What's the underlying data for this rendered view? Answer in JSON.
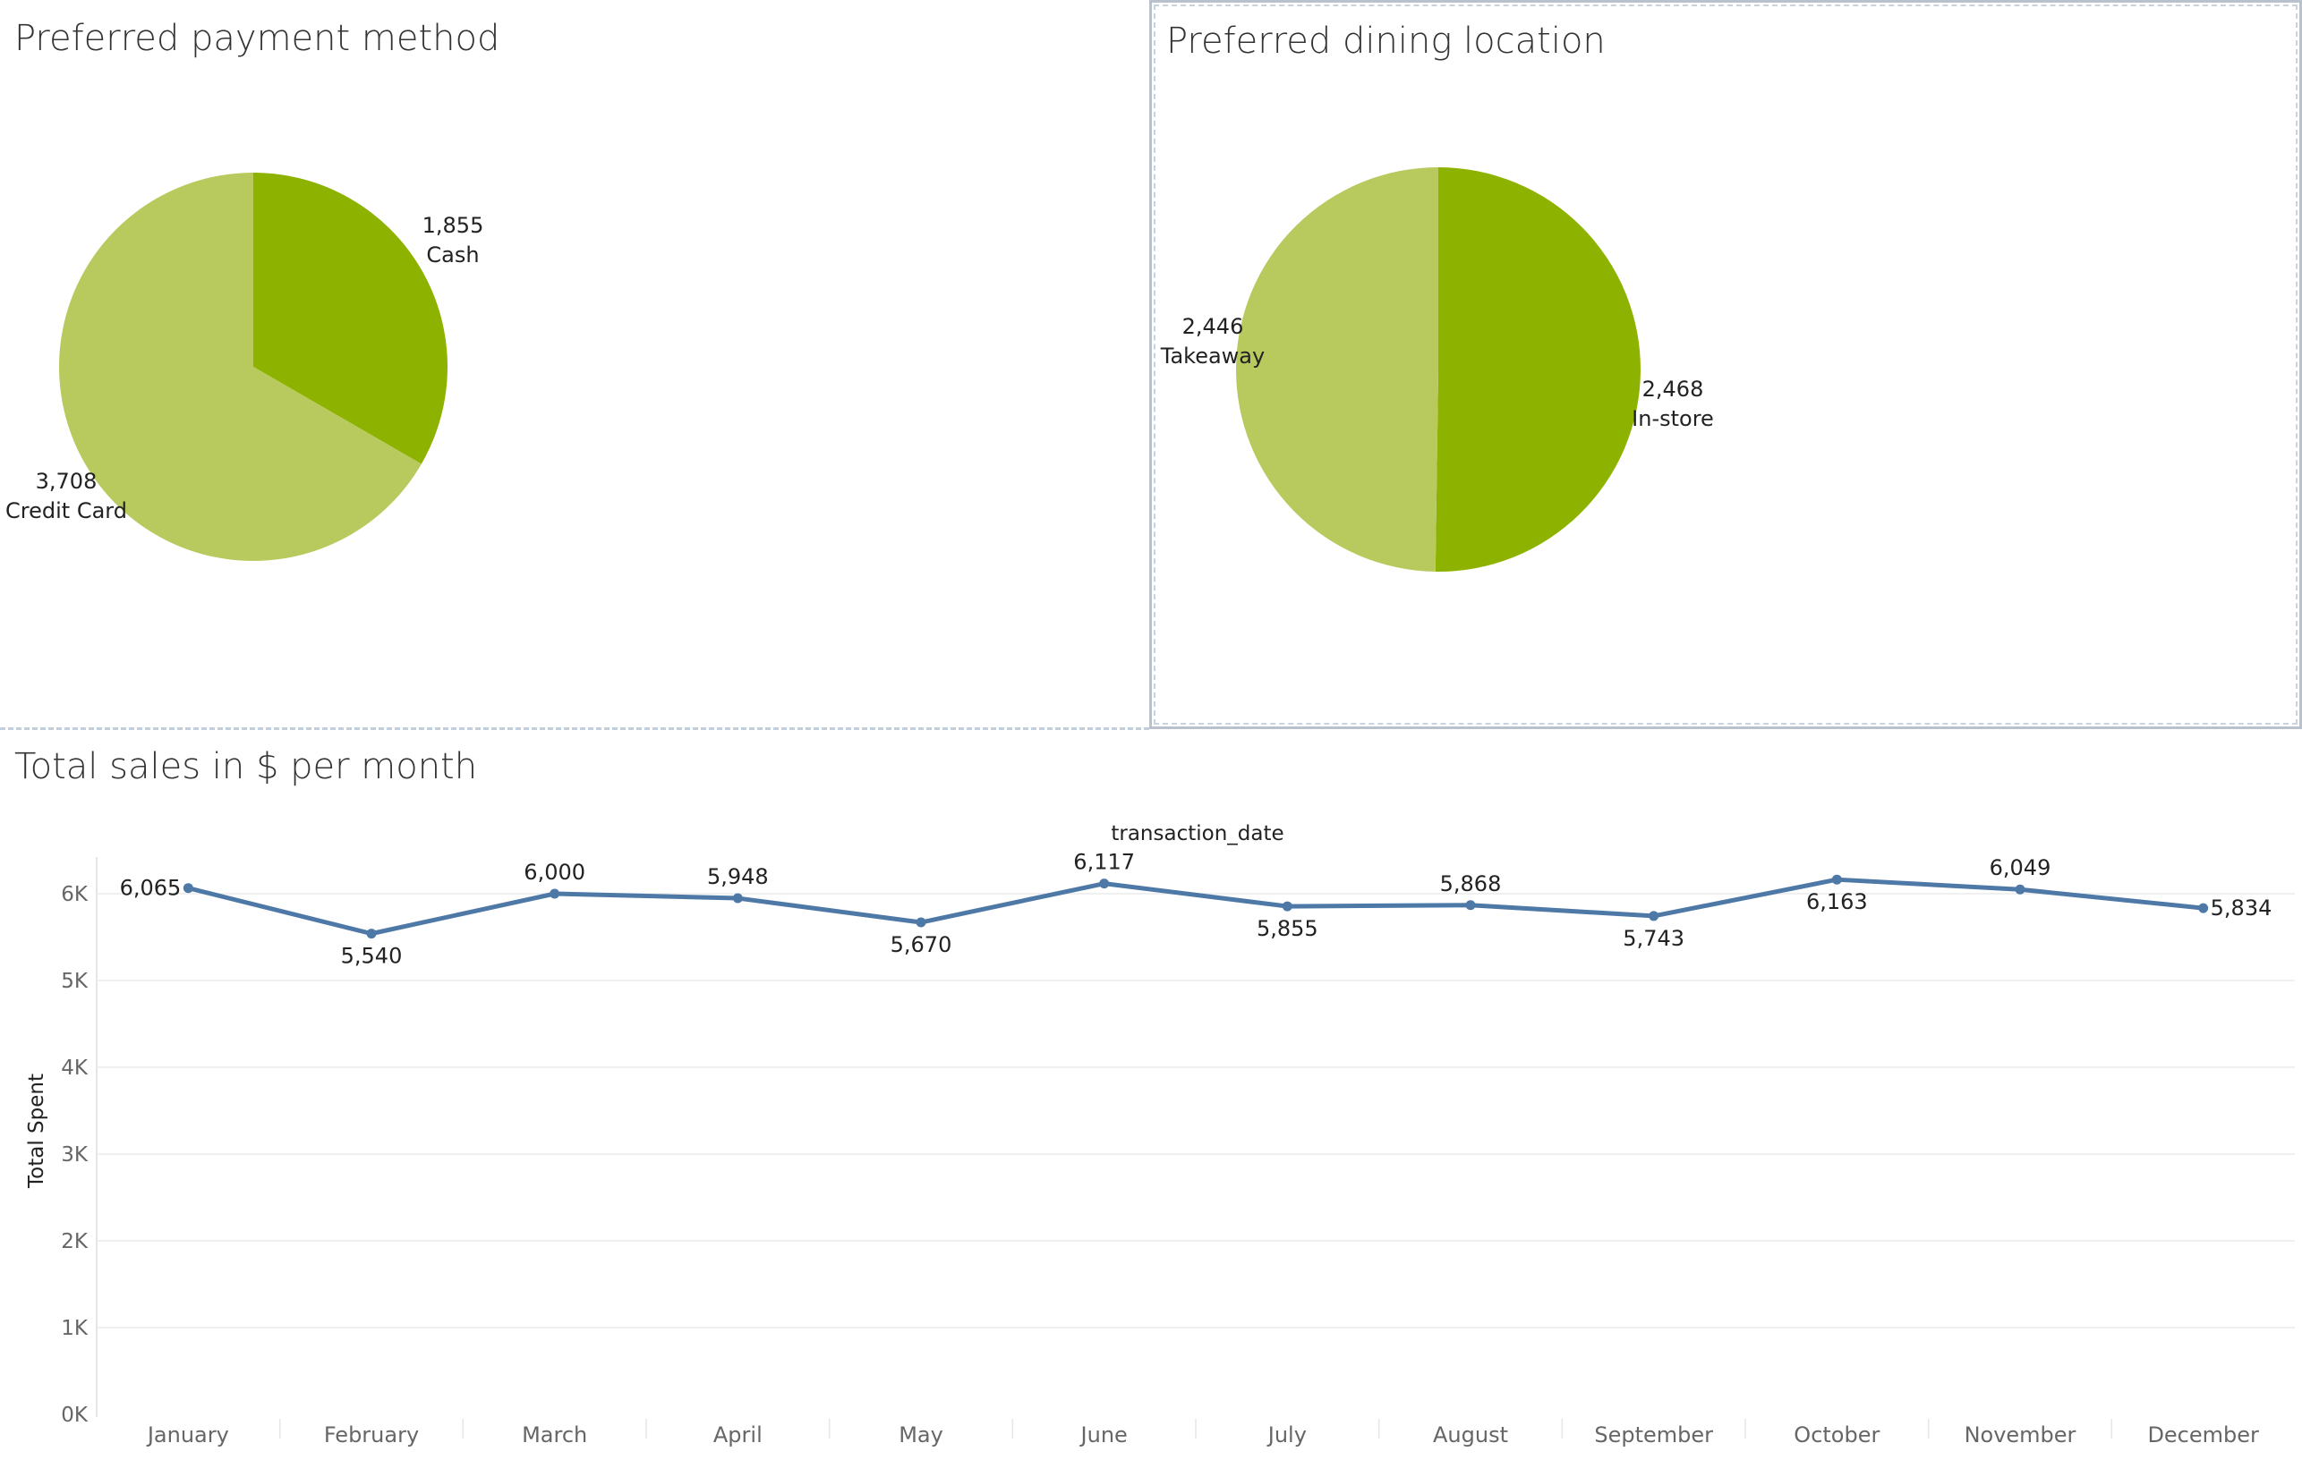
{
  "colors": {
    "dark_green": "#8db300",
    "light_green": "#b8ca5e",
    "line_blue": "#4e79a7",
    "grid": "#ececec"
  },
  "chart_data": [
    {
      "type": "pie",
      "title": "Preferred payment method",
      "slices": [
        {
          "label": "Cash",
          "value": 1855,
          "display": "1,855",
          "color": "#8db300"
        },
        {
          "label": "Credit Card",
          "value": 3708,
          "display": "3,708",
          "color": "#b8ca5e"
        }
      ]
    },
    {
      "type": "pie",
      "title": "Preferred dining location",
      "slices": [
        {
          "label": "In-store",
          "value": 2468,
          "display": "2,468",
          "color": "#8db300"
        },
        {
          "label": "Takeaway",
          "value": 2446,
          "display": "2,446",
          "color": "#b8ca5e"
        }
      ]
    },
    {
      "type": "line",
      "title": "Total sales in $ per month",
      "xlabel": "transaction_date",
      "ylabel": "Total Spent",
      "categories": [
        "January",
        "February",
        "March",
        "April",
        "May",
        "June",
        "July",
        "August",
        "September",
        "October",
        "November",
        "December"
      ],
      "values": [
        6065,
        5540,
        6000,
        5948,
        5670,
        6117,
        5855,
        5868,
        5743,
        6163,
        6049,
        5834
      ],
      "value_labels": [
        "6,065",
        "5,540",
        "6,000",
        "5,948",
        "5,670",
        "6,117",
        "5,855",
        "5,868",
        "5,743",
        "6,163",
        "6,049",
        "5,834"
      ],
      "label_positions": [
        "left",
        "below",
        "above",
        "above",
        "below",
        "above",
        "below",
        "above",
        "below",
        "below",
        "above",
        "right"
      ],
      "yticks": [
        "0K",
        "1K",
        "2K",
        "3K",
        "4K",
        "5K",
        "6K"
      ],
      "ylim": [
        0,
        6500
      ],
      "grid": true
    }
  ]
}
